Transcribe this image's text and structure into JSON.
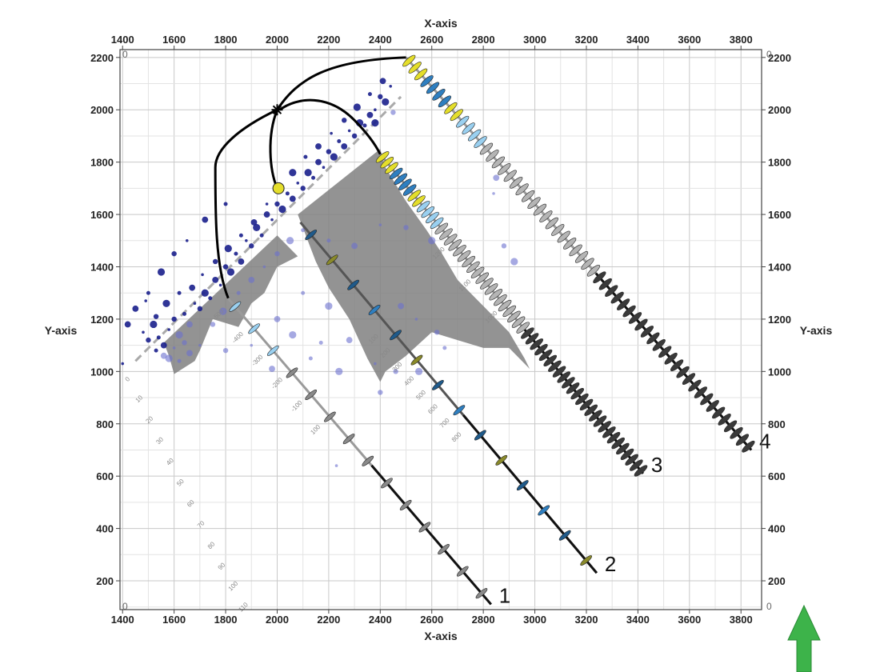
{
  "chart_data": {
    "type": "scatter",
    "title": "",
    "xlabel": "X-axis",
    "ylabel": "Y-axis",
    "xlim": [
      1390,
      3880
    ],
    "ylim": [
      90,
      2230
    ],
    "grid": true,
    "x_ticks": [
      1400,
      1600,
      1800,
      2000,
      2200,
      2400,
      2600,
      2800,
      3000,
      3200,
      3400,
      3600,
      3800
    ],
    "y_ticks": [
      200,
      400,
      600,
      800,
      1000,
      1200,
      1400,
      1600,
      1800,
      2000,
      2200
    ],
    "corner_labels": [
      "0",
      "0",
      "0",
      "0"
    ],
    "wells": [
      {
        "label": "1",
        "start": [
          1800,
          1290
        ],
        "end": [
          2830,
          110
        ],
        "color_top": "#9a9a9a",
        "color_bottom": "#111111"
      },
      {
        "label": "2",
        "start": [
          2090,
          1570
        ],
        "end": [
          3240,
          230
        ],
        "color_top": "#555555",
        "color_bottom": "#111111"
      },
      {
        "label": "3",
        "start": [
          2400,
          1830
        ],
        "end": [
          3420,
          610
        ],
        "color_top": "#9a9a9a",
        "color_bottom": "#111111"
      },
      {
        "label": "4",
        "start": [
          2500,
          2200
        ],
        "end": [
          3840,
          700
        ],
        "color_top": "#9a9a9a",
        "color_bottom": "#111111"
      }
    ],
    "well1_depth_labels": [
      "100",
      "-100",
      "-200",
      "-300",
      "-400",
      "-500"
    ],
    "well2_depth_labels": [
      "100",
      "200",
      "300",
      "400",
      "500",
      "600",
      "700",
      "800"
    ],
    "well3_depth_labels": [
      "1000",
      "1100",
      "1200"
    ],
    "diagonal_labels": [
      "0",
      "10",
      "20",
      "30",
      "40",
      "50",
      "60",
      "70",
      "80",
      "90",
      "100",
      "110"
    ],
    "frac_points": [
      [
        1480,
        1150
      ],
      [
        1500,
        1120
      ],
      [
        1520,
        1180
      ],
      [
        1540,
        1130
      ],
      [
        1560,
        1100
      ],
      [
        1580,
        1160
      ],
      [
        1600,
        1200
      ],
      [
        1620,
        1140
      ],
      [
        1640,
        1220
      ],
      [
        1660,
        1180
      ],
      [
        1680,
        1260
      ],
      [
        1700,
        1240
      ],
      [
        1720,
        1300
      ],
      [
        1740,
        1280
      ],
      [
        1760,
        1350
      ],
      [
        1780,
        1330
      ],
      [
        1800,
        1400
      ],
      [
        1820,
        1380
      ],
      [
        1840,
        1450
      ],
      [
        1860,
        1420
      ],
      [
        1880,
        1500
      ],
      [
        1900,
        1480
      ],
      [
        1920,
        1550
      ],
      [
        1940,
        1520
      ],
      [
        1960,
        1600
      ],
      [
        1980,
        1580
      ],
      [
        2000,
        1640
      ],
      [
        2020,
        1620
      ],
      [
        2040,
        1680
      ],
      [
        2060,
        1660
      ],
      [
        2080,
        1720
      ],
      [
        2100,
        1700
      ],
      [
        2120,
        1760
      ],
      [
        2140,
        1740
      ],
      [
        2160,
        1800
      ],
      [
        2180,
        1780
      ],
      [
        2200,
        1840
      ],
      [
        2220,
        1820
      ],
      [
        2240,
        1880
      ],
      [
        2260,
        1860
      ],
      [
        2280,
        1920
      ],
      [
        2300,
        1900
      ],
      [
        2320,
        1950
      ],
      [
        2340,
        1940
      ],
      [
        2360,
        1980
      ],
      [
        2380,
        2000
      ],
      [
        2400,
        2050
      ],
      [
        2420,
        2030
      ],
      [
        1530,
        1080
      ],
      [
        1560,
        1060
      ],
      [
        1600,
        1090
      ],
      [
        1640,
        1110
      ],
      [
        1580,
        1050
      ],
      [
        1620,
        1040
      ],
      [
        1660,
        1070
      ],
      [
        1700,
        1100
      ],
      [
        1750,
        1180
      ],
      [
        1790,
        1230
      ],
      [
        1850,
        1300
      ],
      [
        1900,
        1350
      ],
      [
        1950,
        1400
      ],
      [
        2000,
        1450
      ],
      [
        2050,
        1500
      ],
      [
        2100,
        1540
      ],
      [
        1450,
        1240
      ],
      [
        1490,
        1270
      ],
      [
        1530,
        1210
      ],
      [
        1570,
        1260
      ],
      [
        1620,
        1300
      ],
      [
        1670,
        1320
      ],
      [
        1710,
        1370
      ],
      [
        1760,
        1420
      ],
      [
        1810,
        1470
      ],
      [
        1860,
        1520
      ],
      [
        1910,
        1570
      ],
      [
        1960,
        1640
      ],
      [
        2010,
        1700
      ],
      [
        2060,
        1760
      ],
      [
        2110,
        1820
      ],
      [
        2160,
        1860
      ],
      [
        2210,
        1910
      ],
      [
        2260,
        1960
      ],
      [
        2310,
        2010
      ],
      [
        2360,
        2060
      ],
      [
        2410,
        2110
      ],
      [
        2440,
        2090
      ],
      [
        2450,
        1990
      ],
      [
        2380,
        1950
      ],
      [
        2200,
        1500
      ],
      [
        2300,
        1480
      ],
      [
        2400,
        1560
      ],
      [
        2500,
        1550
      ],
      [
        2600,
        1500
      ],
      [
        2700,
        1460
      ],
      [
        2480,
        1250
      ],
      [
        2540,
        1200
      ],
      [
        2620,
        1150
      ],
      [
        2200,
        1250
      ],
      [
        2100,
        1300
      ],
      [
        2000,
        1200
      ],
      [
        1900,
        1100
      ],
      [
        1800,
        1080
      ],
      [
        2060,
        1140
      ],
      [
        2170,
        1110
      ],
      [
        2280,
        1120
      ],
      [
        2380,
        1030
      ],
      [
        2460,
        1000
      ],
      [
        2550,
        1000
      ],
      [
        2650,
        1090
      ],
      [
        2850,
        1740
      ],
      [
        2840,
        1680
      ],
      [
        2880,
        1480
      ],
      [
        2920,
        1420
      ],
      [
        1800,
        1640
      ],
      [
        1720,
        1580
      ],
      [
        1650,
        1500
      ],
      [
        1600,
        1450
      ],
      [
        1550,
        1380
      ],
      [
        1500,
        1300
      ],
      [
        1420,
        1180
      ],
      [
        1400,
        1030
      ],
      [
        2400,
        920
      ],
      [
        2240,
        1000
      ],
      [
        2130,
        1050
      ],
      [
        1980,
        1010
      ],
      [
        2230,
        640
      ]
    ]
  }
}
